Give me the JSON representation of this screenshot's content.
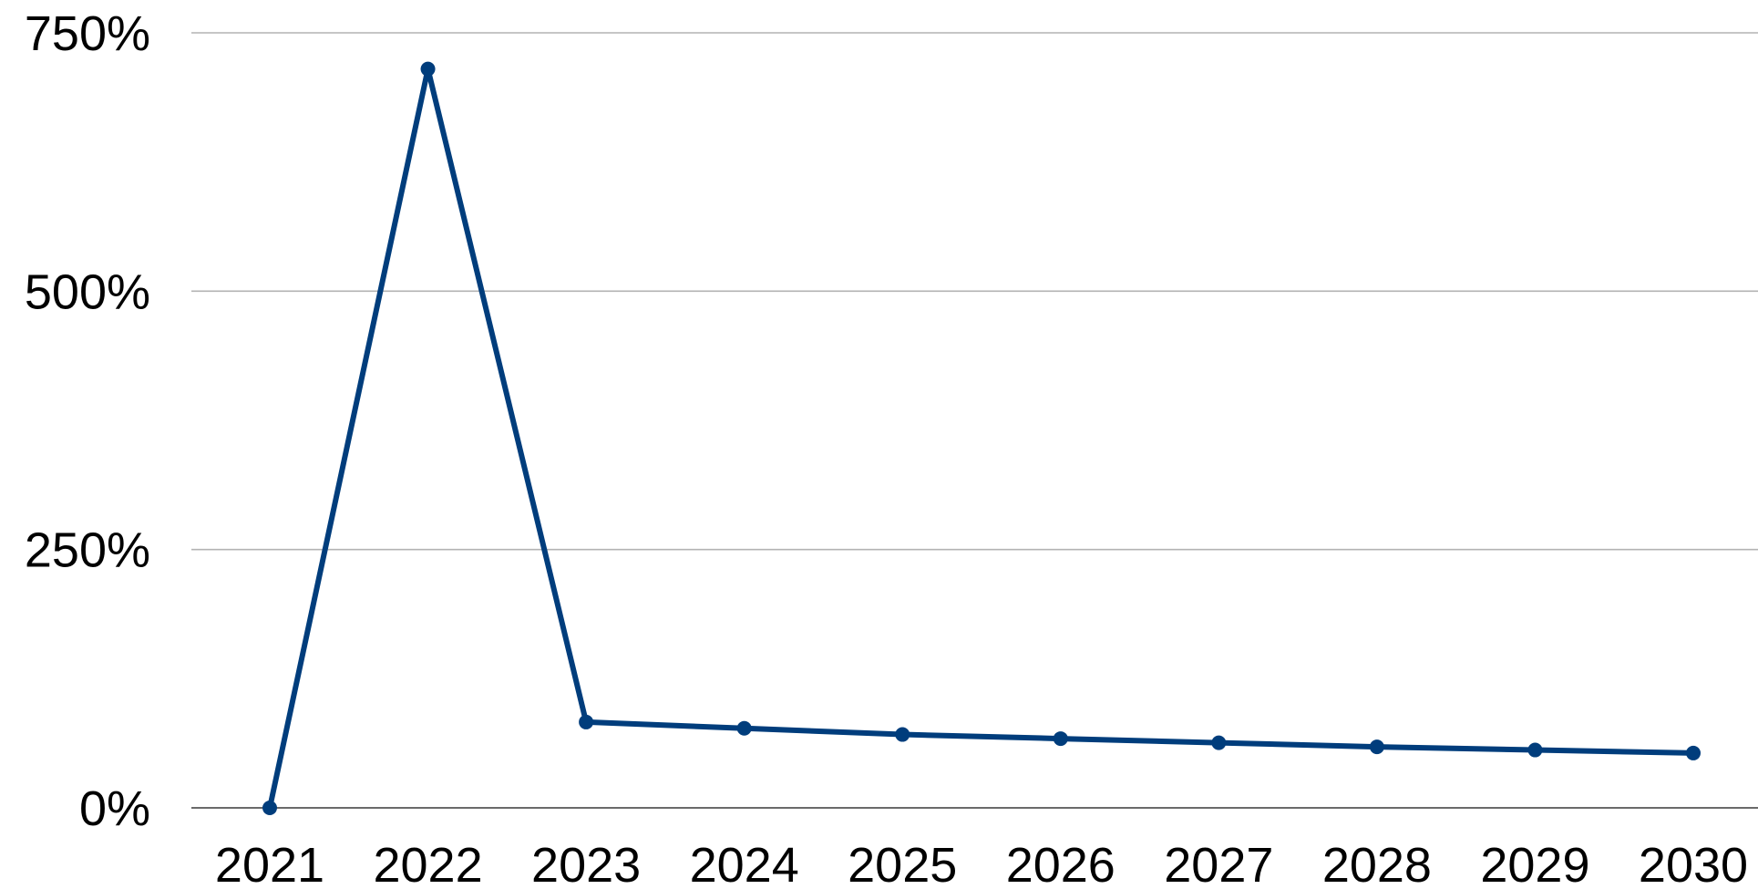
{
  "chart_data": {
    "type": "line",
    "title": "",
    "xlabel": "",
    "ylabel": "",
    "categories": [
      "2021",
      "2022",
      "2023",
      "2024",
      "2025",
      "2026",
      "2027",
      "2028",
      "2029",
      "2030"
    ],
    "series": [
      {
        "values": [
          0,
          715,
          83,
          77,
          71,
          67,
          63,
          59,
          56,
          53
        ],
        "color": "#003d7c"
      }
    ],
    "ylim": [
      0,
      750
    ],
    "yticks": [
      0,
      250,
      500,
      750
    ],
    "ytick_labels": [
      "0%",
      "250%",
      "500%",
      "750%"
    ],
    "grid": true,
    "legend": "none"
  }
}
